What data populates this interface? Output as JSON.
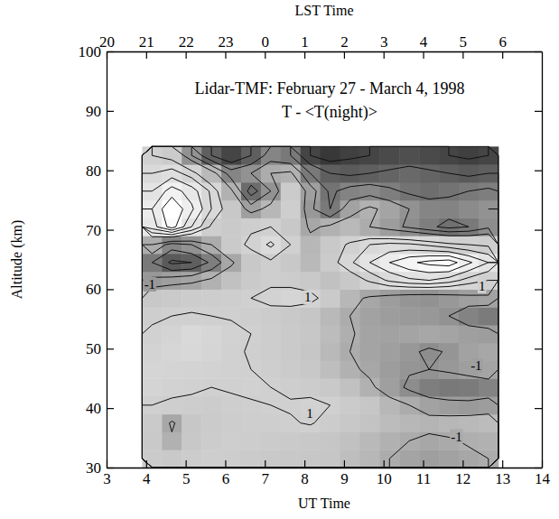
{
  "chart_data": {
    "type": "contour",
    "title": "Lidar-TMF: February 27 - March 4, 1998",
    "subtitle": "T - <T(night)>",
    "x_label": "UT Time",
    "x2_label": "LST Time",
    "y_label": "Altitude (km)",
    "xlim": [
      3,
      14
    ],
    "xticks": [
      3,
      4,
      5,
      6,
      7,
      8,
      9,
      10,
      11,
      12,
      13,
      14
    ],
    "x2ticks": [
      {
        "value": 3,
        "label": "20"
      },
      {
        "value": 4,
        "label": "21"
      },
      {
        "value": 5,
        "label": "22"
      },
      {
        "value": 6,
        "label": "23"
      },
      {
        "value": 7,
        "label": "0"
      },
      {
        "value": 8,
        "label": "1"
      },
      {
        "value": 9,
        "label": "2"
      },
      {
        "value": 10,
        "label": "3"
      },
      {
        "value": 11,
        "label": "4"
      },
      {
        "value": 12,
        "label": "5"
      },
      {
        "value": 13,
        "label": "6"
      }
    ],
    "ylim": [
      30,
      100
    ],
    "yticks": [
      30,
      40,
      50,
      60,
      70,
      80,
      90,
      100
    ],
    "zlim": [
      -6,
      6
    ],
    "contour_levels": [
      -6,
      -5,
      -4,
      -3,
      -2,
      -1,
      1,
      2,
      3,
      4,
      5,
      6
    ],
    "x": [
      4.15,
      4.65,
      5.15,
      5.65,
      6.15,
      6.65,
      7.15,
      7.65,
      8.15,
      8.65,
      9.15,
      9.65,
      10.15,
      10.65,
      11.15,
      11.65,
      12.15,
      12.65
    ],
    "y": [
      31.5,
      34.5,
      37.5,
      40.5,
      43.5,
      46.5,
      49.5,
      52.5,
      55.5,
      58.5,
      61.5,
      64.5,
      67.5,
      70.5,
      73.5,
      76.5,
      79.5,
      82.5
    ],
    "cells": [
      [
        0.5,
        0.3,
        0.6,
        0.8,
        0.7,
        0.5,
        0.3,
        0.2,
        0.1,
        0,
        -0.3,
        -0.6,
        -1.0,
        -1.3,
        -1.5,
        -1.4,
        -1.2,
        -1.0
      ],
      [
        0.3,
        -0.8,
        0.2,
        0.6,
        0.8,
        0.7,
        0.5,
        0.4,
        0.2,
        0.0,
        -0.2,
        -0.5,
        -0.8,
        -1.0,
        -1.2,
        -1.1,
        -0.9,
        -0.8
      ],
      [
        0.4,
        -1.2,
        0.1,
        0.5,
        0.7,
        0.8,
        0.8,
        0.9,
        1.1,
        0.6,
        0.2,
        -0.1,
        -0.4,
        -0.6,
        -0.7,
        -0.6,
        -0.5,
        -0.4
      ],
      [
        1.0,
        0.8,
        0.7,
        0.6,
        0.8,
        0.9,
        1.0,
        1.1,
        1.3,
        1.0,
        0.5,
        0.0,
        -0.6,
        -1.0,
        -1.4,
        -1.6,
        -1.7,
        -1.6
      ],
      [
        1.5,
        1.3,
        1.2,
        1.0,
        1.1,
        1.2,
        1.0,
        0.8,
        0.6,
        0.3,
        -0.2,
        -0.8,
        -1.5,
        -2.2,
        -2.8,
        -3.0,
        -2.9,
        -2.6
      ],
      [
        1.6,
        1.5,
        1.4,
        1.3,
        1.2,
        1.0,
        0.8,
        0.5,
        0.2,
        -0.3,
        -0.8,
        -1.2,
        -1.6,
        -1.9,
        -2.0,
        -1.8,
        -1.5,
        -1.3
      ],
      [
        1.4,
        1.7,
        1.9,
        1.6,
        1.2,
        0.9,
        0.7,
        0.4,
        0.0,
        -0.5,
        -1.0,
        -1.3,
        -1.5,
        -1.8,
        -2.2,
        -1.9,
        -1.4,
        -1.2
      ],
      [
        1.2,
        1.5,
        2.0,
        1.7,
        1.3,
        1.0,
        0.7,
        0.4,
        0.1,
        -0.4,
        -0.9,
        -1.3,
        -1.4,
        -1.3,
        -1.2,
        -1.3,
        -1.5,
        -1.6
      ],
      [
        0.8,
        1.0,
        1.1,
        1.0,
        0.9,
        0.8,
        0.6,
        0.3,
        0.0,
        -0.5,
        -1.0,
        -1.4,
        -1.6,
        -1.7,
        -1.8,
        -2.0,
        -2.6,
        -2.9
      ],
      [
        0.2,
        0.4,
        0.6,
        0.7,
        0.8,
        1.0,
        1.3,
        1.6,
        1.4,
        0.4,
        -0.6,
        -1.2,
        -1.6,
        -1.9,
        -2.0,
        -1.8,
        -1.5,
        -1.4
      ],
      [
        -1.8,
        -1.5,
        -1.3,
        -0.8,
        -0.2,
        0.4,
        0.8,
        0.6,
        0.3,
        -0.2,
        0.2,
        1.2,
        2.2,
        2.8,
        3.0,
        2.5,
        1.6,
        1.0
      ],
      [
        -3.0,
        -4.2,
        -4.0,
        -2.8,
        -1.2,
        0.2,
        0.8,
        0.2,
        -0.5,
        0.5,
        1.8,
        3.0,
        4.0,
        4.8,
        5.3,
        5.6,
        4.2,
        3.0
      ],
      [
        -1.0,
        -2.5,
        -2.0,
        -1.0,
        0.4,
        1.3,
        2.2,
        1.0,
        -0.6,
        0.3,
        1.2,
        2.0,
        2.3,
        2.2,
        1.8,
        1.3,
        1.0,
        0.8
      ],
      [
        3.5,
        5.5,
        3.0,
        0.8,
        0.4,
        0.8,
        1.0,
        0.2,
        -1.2,
        -0.8,
        -0.5,
        -1.0,
        -1.6,
        -2.2,
        -2.8,
        -3.3,
        -3.0,
        -2.2
      ],
      [
        4.0,
        6.0,
        4.2,
        2.0,
        0.2,
        -1.5,
        -0.6,
        0.8,
        -1.8,
        -3.0,
        -1.4,
        -0.8,
        -1.3,
        -2.0,
        -2.5,
        -2.6,
        -2.3,
        -2.0
      ],
      [
        3.0,
        4.5,
        3.5,
        1.8,
        -0.8,
        -3.5,
        -2.0,
        0.5,
        -1.5,
        -3.2,
        -2.6,
        -2.4,
        -2.8,
        -3.2,
        -3.4,
        -3.2,
        -3.0,
        -2.8
      ],
      [
        2.0,
        2.5,
        1.5,
        -0.5,
        -2.5,
        -2.0,
        -1.0,
        -0.8,
        -3.0,
        -4.0,
        -4.2,
        -4.0,
        -3.8,
        -3.6,
        -3.8,
        -4.0,
        -4.2,
        -4.0
      ],
      [
        1.0,
        0.5,
        -2.0,
        -4.0,
        -5.0,
        -4.0,
        -2.5,
        -3.0,
        -5.0,
        -5.5,
        -5.2,
        -5.0,
        -4.8,
        -4.6,
        -4.8,
        -5.0,
        -5.2,
        -5.0
      ]
    ],
    "annotations": [
      {
        "text": "-1",
        "x": 3.95,
        "y": 60.6
      },
      {
        "text": "1",
        "x": 8.0,
        "y": 58.4
      },
      {
        "text": "1",
        "x": 12.4,
        "y": 60.3
      },
      {
        "text": "-1",
        "x": 12.2,
        "y": 46.9
      },
      {
        "text": "1",
        "x": 8.05,
        "y": 38.8
      },
      {
        "text": "-1",
        "x": 11.7,
        "y": 35.0
      }
    ]
  }
}
